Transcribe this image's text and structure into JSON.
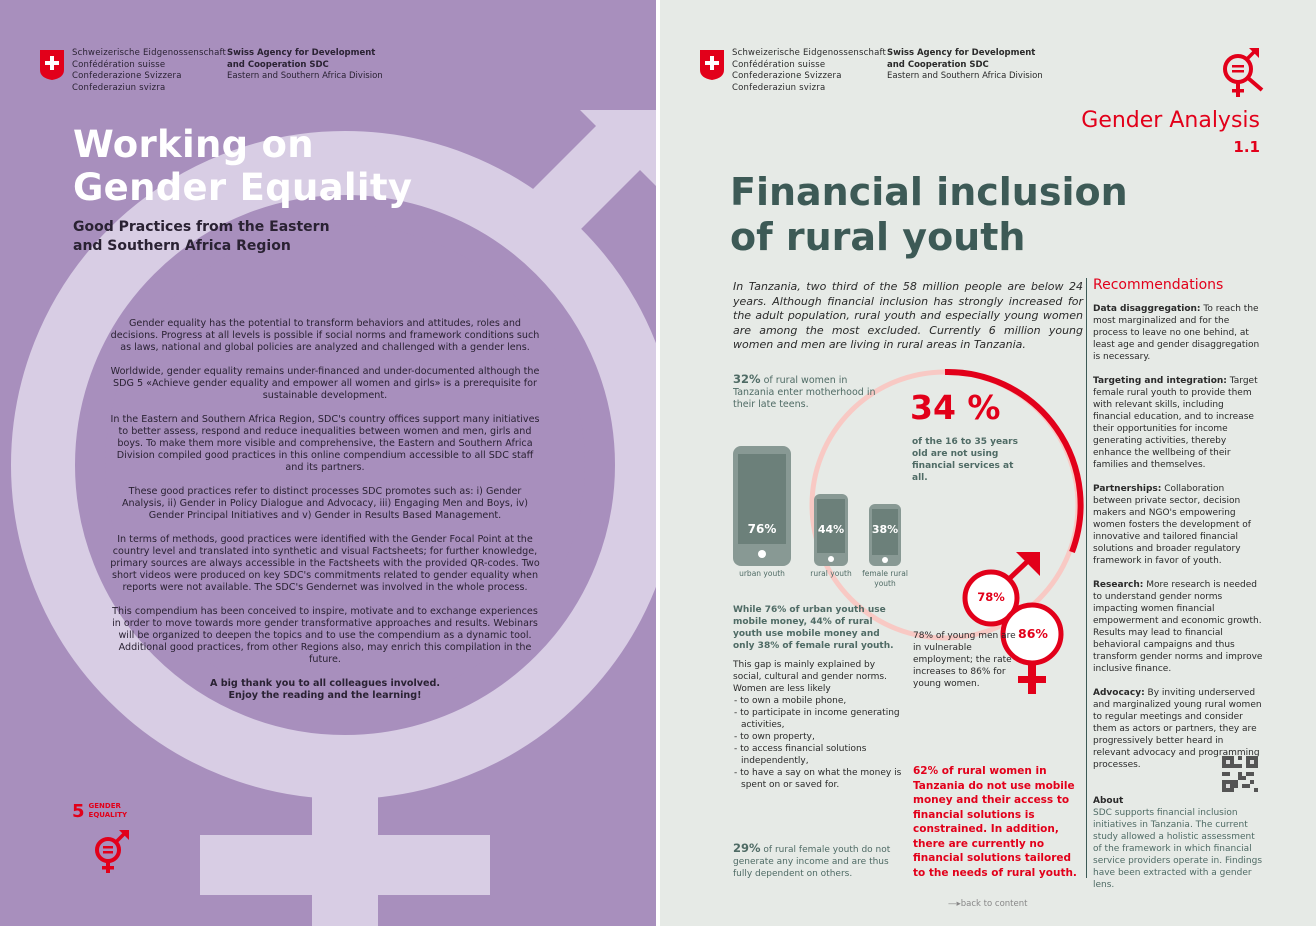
{
  "header": {
    "federation_lines": [
      "Schweizerische Eidgenossenschaft",
      "Confédération suisse",
      "Confederazione Svizzera",
      "Confederaziun svizra"
    ],
    "agency_bold": [
      "Swiss Agency for Development",
      "and Cooperation SDC"
    ],
    "agency_division": "Eastern and Southern Africa Division"
  },
  "left_page": {
    "title_line1": "Working on",
    "title_line2": "Gender Equality",
    "subtitle": "Good Practices from the Eastern and Southern Africa Region",
    "paragraphs": [
      "Gender equality has the potential to transform behaviors and attitudes, roles and decisions. Progress at all levels is possible if social norms and framework conditions such as laws, national and global policies are analyzed and challenged with a gender lens.",
      "Worldwide, gender equality remains under-financed and under-documented although the SDG 5 «Achieve gender equality and empower all women and girls» is a prerequisite for sustainable development.",
      "In the Eastern and Southern Africa Region, SDC's country offices support many initiatives to better assess, respond and reduce inequalities between women and men, girls and boys. To make them more visible and comprehensive, the Eastern and Southern Africa Division compiled good practices in this online compendium accessible to all SDC staff and its partners.",
      "These good practices refer to distinct processes SDC promotes such as: i) Gender Analysis, ii) Gender in Policy Dialogue and Advocacy, iii) Engaging Men and Boys, iv) Gender Principal Initiatives and v) Gender in Results Based Management.",
      "In terms of methods, good practices were identified with the Gender Focal Point at the country level and translated into synthetic and visual Factsheets; for further knowledge, primary sources are always accessible in the Factsheets with the provided QR-codes. Two short videos were produced on key SDC's commitments related to gender equality when reports were not available. The SDC's Gendernet was involved in the whole process.",
      "This compendium has been conceived to inspire, motivate and to exchange experiences in order to move towards more gender transformative approaches and results. Webinars will be organized to deepen the topics and to use the compendium as a dynamic tool. Additional good practices, from other Regions also, may enrich this compilation in the future."
    ],
    "thanks_line1": "A big thank you to all colleagues involved.",
    "thanks_line2": "Enjoy the reading and the learning!",
    "sdg_number": "5",
    "sdg_label": "GENDER EQUALITY"
  },
  "right_page": {
    "category": "Gender Analysis",
    "category_number": "1.1",
    "title_line1": "Financial inclusion",
    "title_line2": "of rural youth",
    "intro": "In Tanzania, two third of the 58 million people are below 24 years. Although financial inclusion has strongly increased for the adult population, rural youth and especially young women are among the most excluded. Currently 6 million young women and men are living in rural areas in Tanzania.",
    "stat32_value": "32%",
    "stat32_text": "of rural women in Tanzania enter motherhood in their late teens.",
    "stat34_value": "34 %",
    "stat34_text": "of the 16 to 35 years old are not using financial services at all.",
    "phones": [
      {
        "pct": "76%",
        "label": "urban youth"
      },
      {
        "pct": "44%",
        "label": "rural youth"
      },
      {
        "pct": "38%",
        "label": "female rural youth"
      }
    ],
    "mobile_text": "While 76% of urban youth use mobile money, 44% of rural youth use mobile money and only 38% of female rural youth.",
    "gap_intro": "This gap is mainly explained by social, cultural and gender norms. Women are less likely",
    "gap_items": [
      "to own a mobile phone,",
      "to participate in income generating activities,",
      "to own property,",
      "to access financial solutions independently,",
      "to have a say on what the money is spent on or saved for."
    ],
    "male_pct": "78%",
    "female_pct": "86%",
    "stat78_text": "78% of young men are in vulnerable employment; the rate increases to 86% for young women.",
    "stat62_text": "62% of rural women in Tanzania do not use mobile money and their access to financial solutions is constrained. In addition, there are currently no financial solutions tailored to the needs of rural youth.",
    "stat29_value": "29%",
    "stat29_text": "of rural female youth do not generate any income and are thus fully dependent on others.",
    "recommendations": {
      "heading": "Recommendations",
      "items": [
        {
          "lead": "Data disaggregation:",
          "text": "To reach the most marginalized and for the process to leave no one behind, at least age and gender disaggregation is necessary."
        },
        {
          "lead": "Targeting and integration:",
          "text": "Target female rural youth to provide them with relevant skills, including financial education, and to increase their opportunities for income generating activities, thereby enhance the wellbeing of their families and themselves."
        },
        {
          "lead": "Partnerships:",
          "text": "Collaboration between private sector, decision makers and NGO's empowering women fosters the development of innovative and tailored financial solutions and broader regulatory framework in favor of youth."
        },
        {
          "lead": "Research:",
          "text": "More research is needed to understand gender norms impacting women financial empowerment and economic growth. Results may lead to financial behavioral campaigns and thus transform gender norms and improve inclusive finance."
        },
        {
          "lead": "Advocacy:",
          "text": "By inviting underserved and marginalized young rural women to regular meetings and consider them as actors or partners, they are progressively better heard in relevant advocacy and programming processes."
        }
      ]
    },
    "about_heading": "About",
    "about_text": "SDC supports financial inclusion initiatives in Tanzania. The current study allowed a holistic assessment of the framework in which financial service providers operate in. Findings have been extracted with a gender lens.",
    "back_link": "back to content"
  },
  "colors": {
    "left_bg": "#a88fbd",
    "venus_light": "#d8cde4",
    "right_bg": "#e6eae6",
    "accent_red": "#e2001a",
    "teal": "#3d5a56"
  }
}
